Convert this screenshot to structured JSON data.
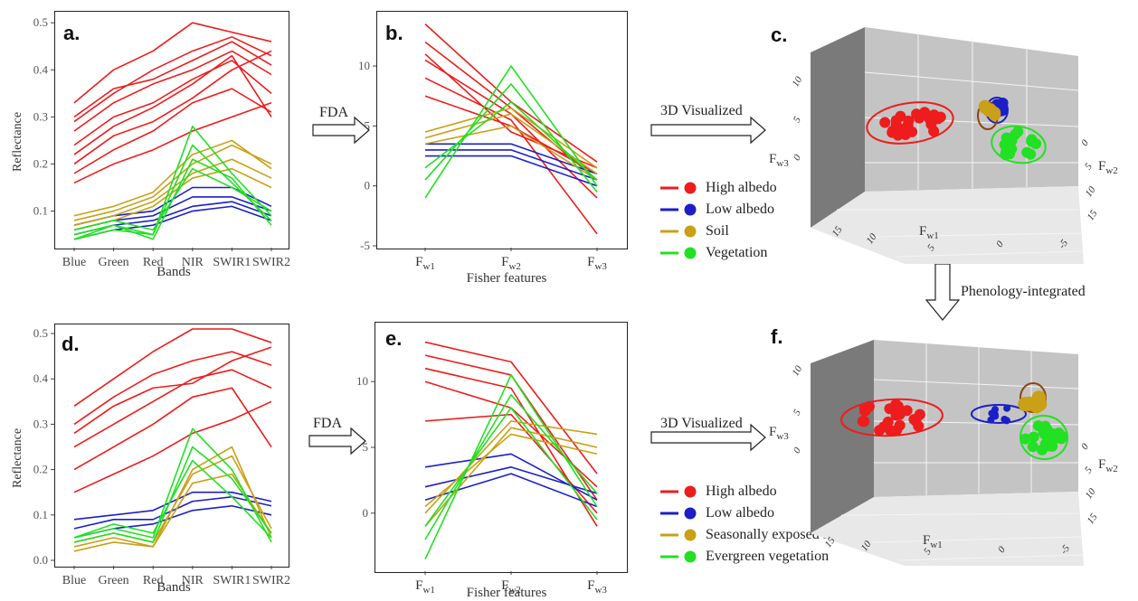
{
  "colors": {
    "high_albedo": "#ee1c1c",
    "low_albedo": "#1a1fc8",
    "soil": "#c9a016",
    "vegetation": "#22e022"
  },
  "panels": {
    "a": {
      "letter": "a.",
      "ylabel": "Reflectance",
      "xlabel": "Bands"
    },
    "b": {
      "letter": "b.",
      "xlabel": "Fisher features"
    },
    "c": {
      "letter": "c."
    },
    "d": {
      "letter": "d.",
      "ylabel": "Reflectance",
      "xlabel": "Bands"
    },
    "e": {
      "letter": "e.",
      "xlabel": "Fisher features"
    },
    "f": {
      "letter": "f."
    }
  },
  "arrows": {
    "fda_top": "FDA",
    "fda_bottom": "FDA",
    "viz_top": "3D Visualized",
    "viz_bottom": "3D Visualized",
    "phenology": "Phenology-integrated"
  },
  "legend_top": [
    "High albedo",
    "Low albedo",
    "Soil",
    "Vegetation"
  ],
  "legend_bottom": [
    "High albedo",
    "Low albedo",
    "Seasonally exposed soil",
    "Evergreen vegetation"
  ],
  "axis3d": {
    "fw1": "F",
    "fw1_sub": "w1",
    "fw2": "F",
    "fw2_sub": "w2",
    "fw3": "F",
    "fw3_sub": "w3",
    "c_z_ticks": [
      "10",
      "5",
      "0"
    ],
    "c_x_ticks": [
      "15",
      "10",
      "5",
      "0",
      "-5"
    ],
    "c_y_ticks": [
      "0",
      "5",
      "10",
      "15"
    ],
    "f_z_ticks": [
      "10",
      "5",
      "0"
    ],
    "f_x_ticks": [
      "15",
      "10",
      "5",
      "0",
      "-5"
    ],
    "f_y_ticks": [
      "0",
      "5",
      "10",
      "15"
    ]
  },
  "chart_data": [
    {
      "id": "a",
      "type": "line",
      "categories": [
        "Blue",
        "Green",
        "Red",
        "NIR",
        "SWIR1",
        "SWIR2"
      ],
      "xlabel": "Bands",
      "ylabel": "Reflectance",
      "ylim": [
        0.03,
        0.51
      ],
      "yticks": [
        "0.5",
        "0.4",
        "0.3",
        "0.2",
        "0.1"
      ],
      "series": [
        {
          "class": "high_albedo",
          "values": [
            0.3,
            0.36,
            0.38,
            0.42,
            0.46,
            0.41
          ]
        },
        {
          "class": "high_albedo",
          "values": [
            0.33,
            0.4,
            0.44,
            0.5,
            0.48,
            0.46
          ]
        },
        {
          "class": "high_albedo",
          "values": [
            0.27,
            0.33,
            0.37,
            0.4,
            0.44,
            0.39
          ]
        },
        {
          "class": "high_albedo",
          "values": [
            0.24,
            0.3,
            0.33,
            0.38,
            0.42,
            0.35
          ]
        },
        {
          "class": "high_albedo",
          "values": [
            0.2,
            0.26,
            0.29,
            0.34,
            0.4,
            0.44
          ]
        },
        {
          "class": "high_albedo",
          "values": [
            0.16,
            0.2,
            0.23,
            0.27,
            0.3,
            0.33
          ]
        },
        {
          "class": "high_albedo",
          "values": [
            0.29,
            0.35,
            0.4,
            0.44,
            0.47,
            0.43
          ]
        },
        {
          "class": "high_albedo",
          "values": [
            0.22,
            0.28,
            0.32,
            0.37,
            0.43,
            0.3
          ]
        },
        {
          "class": "high_albedo",
          "values": [
            0.18,
            0.23,
            0.27,
            0.33,
            0.36,
            0.31
          ]
        },
        {
          "class": "low_albedo",
          "values": [
            0.06,
            0.08,
            0.09,
            0.13,
            0.13,
            0.1
          ]
        },
        {
          "class": "low_albedo",
          "values": [
            0.05,
            0.07,
            0.08,
            0.11,
            0.12,
            0.09
          ]
        },
        {
          "class": "low_albedo",
          "values": [
            0.07,
            0.09,
            0.1,
            0.15,
            0.15,
            0.11
          ]
        },
        {
          "class": "low_albedo",
          "values": [
            0.04,
            0.06,
            0.07,
            0.1,
            0.11,
            0.08
          ]
        },
        {
          "class": "soil",
          "values": [
            0.08,
            0.1,
            0.13,
            0.2,
            0.24,
            0.2
          ]
        },
        {
          "class": "soil",
          "values": [
            0.07,
            0.09,
            0.12,
            0.18,
            0.21,
            0.17
          ]
        },
        {
          "class": "soil",
          "values": [
            0.09,
            0.11,
            0.14,
            0.22,
            0.25,
            0.19
          ]
        },
        {
          "class": "soil",
          "values": [
            0.06,
            0.08,
            0.11,
            0.17,
            0.19,
            0.15
          ]
        },
        {
          "class": "vegetation",
          "values": [
            0.04,
            0.06,
            0.05,
            0.28,
            0.18,
            0.09
          ]
        },
        {
          "class": "vegetation",
          "values": [
            0.05,
            0.07,
            0.05,
            0.24,
            0.16,
            0.08
          ]
        },
        {
          "class": "vegetation",
          "values": [
            0.04,
            0.07,
            0.04,
            0.21,
            0.17,
            0.07
          ]
        },
        {
          "class": "vegetation",
          "values": [
            0.06,
            0.08,
            0.06,
            0.19,
            0.15,
            0.1
          ]
        }
      ]
    },
    {
      "id": "b",
      "type": "line",
      "categories": [
        "F_w1",
        "F_w2",
        "F_w3"
      ],
      "category_labels": [
        [
          "F",
          "w1"
        ],
        [
          "F",
          "w2"
        ],
        [
          "F",
          "w3"
        ]
      ],
      "xlabel": "Fisher features",
      "ylim": [
        -5,
        14
      ],
      "yticks": [
        "10",
        "5",
        "0",
        "-5"
      ],
      "series": [
        {
          "class": "high_albedo",
          "values": [
            13.5,
            7.0,
            2.0
          ]
        },
        {
          "class": "high_albedo",
          "values": [
            12.0,
            6.5,
            0.5
          ]
        },
        {
          "class": "high_albedo",
          "values": [
            10.5,
            6.0,
            -1.0
          ]
        },
        {
          "class": "high_albedo",
          "values": [
            9.0,
            5.5,
            -4.0
          ]
        },
        {
          "class": "high_albedo",
          "values": [
            11.0,
            4.5,
            1.5
          ]
        },
        {
          "class": "high_albedo",
          "values": [
            7.5,
            5.0,
            1.0
          ]
        },
        {
          "class": "low_albedo",
          "values": [
            3.0,
            3.0,
            0.5
          ]
        },
        {
          "class": "low_albedo",
          "values": [
            2.5,
            2.5,
            0.0
          ]
        },
        {
          "class": "low_albedo",
          "values": [
            3.5,
            3.5,
            1.0
          ]
        },
        {
          "class": "soil",
          "values": [
            4.0,
            6.0,
            1.0
          ]
        },
        {
          "class": "soil",
          "values": [
            3.5,
            5.0,
            0.5
          ]
        },
        {
          "class": "soil",
          "values": [
            4.5,
            6.5,
            1.5
          ]
        },
        {
          "class": "vegetation",
          "values": [
            -1.0,
            10.0,
            0.0
          ]
        },
        {
          "class": "vegetation",
          "values": [
            0.5,
            8.5,
            -0.5
          ]
        },
        {
          "class": "vegetation",
          "values": [
            1.5,
            7.0,
            0.5
          ]
        }
      ]
    },
    {
      "id": "d",
      "type": "line",
      "categories": [
        "Blue",
        "Green",
        "Red",
        "NIR",
        "SWIR1",
        "SWIR2"
      ],
      "xlabel": "Bands",
      "ylabel": "Reflectance",
      "ylim": [
        0.0,
        0.51
      ],
      "yticks": [
        "0.5",
        "0.4",
        "0.3",
        "0.2",
        "0.1",
        "0.0"
      ],
      "series": [
        {
          "class": "high_albedo",
          "values": [
            0.34,
            0.4,
            0.46,
            0.51,
            0.51,
            0.48
          ]
        },
        {
          "class": "high_albedo",
          "values": [
            0.3,
            0.36,
            0.41,
            0.44,
            0.46,
            0.43
          ]
        },
        {
          "class": "high_albedo",
          "values": [
            0.25,
            0.3,
            0.35,
            0.4,
            0.42,
            0.38
          ]
        },
        {
          "class": "high_albedo",
          "values": [
            0.2,
            0.25,
            0.3,
            0.36,
            0.38,
            0.25
          ]
        },
        {
          "class": "high_albedo",
          "values": [
            0.15,
            0.19,
            0.23,
            0.28,
            0.31,
            0.35
          ]
        },
        {
          "class": "high_albedo",
          "values": [
            0.28,
            0.34,
            0.38,
            0.39,
            0.44,
            0.47
          ]
        },
        {
          "class": "low_albedo",
          "values": [
            0.09,
            0.1,
            0.11,
            0.15,
            0.15,
            0.13
          ]
        },
        {
          "class": "low_albedo",
          "values": [
            0.07,
            0.09,
            0.09,
            0.13,
            0.14,
            0.12
          ]
        },
        {
          "class": "low_albedo",
          "values": [
            0.05,
            0.07,
            0.08,
            0.11,
            0.12,
            0.1
          ]
        },
        {
          "class": "soil",
          "values": [
            0.04,
            0.06,
            0.04,
            0.19,
            0.23,
            0.07
          ]
        },
        {
          "class": "soil",
          "values": [
            0.03,
            0.05,
            0.03,
            0.17,
            0.19,
            0.06
          ]
        },
        {
          "class": "soil",
          "values": [
            0.02,
            0.04,
            0.03,
            0.2,
            0.25,
            0.05
          ]
        },
        {
          "class": "vegetation",
          "values": [
            0.05,
            0.07,
            0.05,
            0.29,
            0.2,
            0.04
          ]
        },
        {
          "class": "vegetation",
          "values": [
            0.04,
            0.06,
            0.04,
            0.25,
            0.18,
            0.06
          ]
        },
        {
          "class": "vegetation",
          "values": [
            0.05,
            0.08,
            0.06,
            0.22,
            0.14,
            0.05
          ]
        }
      ]
    },
    {
      "id": "e",
      "type": "line",
      "categories": [
        "F_w1",
        "F_w2",
        "F_w3"
      ],
      "category_labels": [
        [
          "F",
          "w1"
        ],
        [
          "F",
          "w2"
        ],
        [
          "F",
          "w3"
        ]
      ],
      "xlabel": "Fisher features",
      "ylim": [
        -4,
        14
      ],
      "yticks": [
        "10",
        "5",
        "0"
      ],
      "series": [
        {
          "class": "high_albedo",
          "values": [
            13.0,
            11.5,
            3.0
          ]
        },
        {
          "class": "high_albedo",
          "values": [
            12.0,
            10.5,
            1.0
          ]
        },
        {
          "class": "high_albedo",
          "values": [
            11.0,
            9.5,
            -1.0
          ]
        },
        {
          "class": "high_albedo",
          "values": [
            10.0,
            8.0,
            2.0
          ]
        },
        {
          "class": "high_albedo",
          "values": [
            7.0,
            7.5,
            0.0
          ]
        },
        {
          "class": "low_albedo",
          "values": [
            3.5,
            4.5,
            1.0
          ]
        },
        {
          "class": "low_albedo",
          "values": [
            2.0,
            3.5,
            1.5
          ]
        },
        {
          "class": "low_albedo",
          "values": [
            1.0,
            3.0,
            0.5
          ]
        },
        {
          "class": "soil",
          "values": [
            0.0,
            7.0,
            6.0
          ]
        },
        {
          "class": "soil",
          "values": [
            -1.0,
            6.5,
            5.0
          ]
        },
        {
          "class": "soil",
          "values": [
            0.5,
            6.0,
            4.5
          ]
        },
        {
          "class": "vegetation",
          "values": [
            -3.5,
            10.5,
            0.5
          ]
        },
        {
          "class": "vegetation",
          "values": [
            -2.0,
            9.0,
            1.5
          ]
        },
        {
          "class": "vegetation",
          "values": [
            -1.0,
            8.0,
            -0.5
          ]
        }
      ]
    },
    {
      "id": "c",
      "type": "scatter",
      "xlabel": "F_w1",
      "ylabel": "F_w2",
      "zlabel": "F_w3",
      "clusters": [
        {
          "class": "high_albedo",
          "points": 22
        },
        {
          "class": "low_albedo",
          "points": 6
        },
        {
          "class": "soil",
          "points": 6
        },
        {
          "class": "vegetation",
          "points": 18
        }
      ]
    },
    {
      "id": "f",
      "type": "scatter",
      "xlabel": "F_w1",
      "ylabel": "F_w2",
      "zlabel": "F_w3",
      "clusters": [
        {
          "class": "high_albedo",
          "points": 24
        },
        {
          "class": "low_albedo",
          "points": 8
        },
        {
          "class": "soil",
          "points": 5
        },
        {
          "class": "vegetation",
          "points": 20
        }
      ]
    }
  ]
}
